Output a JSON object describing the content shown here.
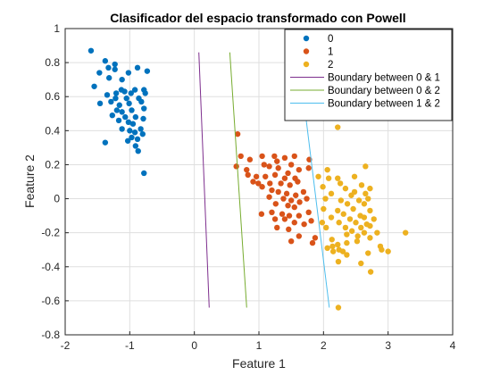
{
  "chart_data": {
    "type": "scatter",
    "title": "Clasificador del espacio transformado con Powell",
    "xlabel": "Feature 1",
    "ylabel": "Feature 2",
    "xlim": [
      -2,
      4
    ],
    "ylim": [
      -0.8,
      1
    ],
    "xticks": [
      "-2",
      "-1",
      "0",
      "1",
      "2",
      "3",
      "4"
    ],
    "yticks": [
      "-0.8",
      "-0.6",
      "-0.4",
      "-0.2",
      "0",
      "0.2",
      "0.4",
      "0.6",
      "0.8",
      "1"
    ],
    "grid": true,
    "legend_position": "top-right",
    "series": [
      {
        "name": "0",
        "kind": "points",
        "color": "#0072BD",
        "points": [
          [
            -1.6,
            0.87
          ],
          [
            -1.38,
            0.81
          ],
          [
            -1.33,
            0.77
          ],
          [
            -1.47,
            0.74
          ],
          [
            -1.23,
            0.79
          ],
          [
            -1.23,
            0.76
          ],
          [
            -1.02,
            0.74
          ],
          [
            -0.88,
            0.77
          ],
          [
            -0.73,
            0.75
          ],
          [
            -1.32,
            0.71
          ],
          [
            -1.12,
            0.7
          ],
          [
            -1.55,
            0.66
          ],
          [
            -1.13,
            0.64
          ],
          [
            -1.08,
            0.63
          ],
          [
            -1.21,
            0.62
          ],
          [
            -0.98,
            0.62
          ],
          [
            -0.92,
            0.64
          ],
          [
            -0.78,
            0.64
          ],
          [
            -1.35,
            0.61
          ],
          [
            -1.22,
            0.59
          ],
          [
            -1.05,
            0.59
          ],
          [
            -0.86,
            0.59
          ],
          [
            -0.76,
            0.62
          ],
          [
            -1.46,
            0.56
          ],
          [
            -1.29,
            0.57
          ],
          [
            -1.16,
            0.55
          ],
          [
            -1.01,
            0.56
          ],
          [
            -0.82,
            0.57
          ],
          [
            -1.2,
            0.52
          ],
          [
            -1.12,
            0.51
          ],
          [
            -0.97,
            0.52
          ],
          [
            -0.78,
            0.53
          ],
          [
            -1.27,
            0.49
          ],
          [
            -1.07,
            0.48
          ],
          [
            -0.91,
            0.48
          ],
          [
            -0.79,
            0.47
          ],
          [
            -1.17,
            0.46
          ],
          [
            -1.02,
            0.45
          ],
          [
            -0.95,
            0.44
          ],
          [
            -0.83,
            0.41
          ],
          [
            -1.12,
            0.41
          ],
          [
            -1.0,
            0.4
          ],
          [
            -0.92,
            0.39
          ],
          [
            -0.8,
            0.38
          ],
          [
            -0.97,
            0.36
          ],
          [
            -0.88,
            0.35
          ],
          [
            -1.03,
            0.34
          ],
          [
            -1.38,
            0.33
          ],
          [
            -0.91,
            0.31
          ],
          [
            -0.87,
            0.28
          ],
          [
            -0.78,
            0.15
          ]
        ]
      },
      {
        "name": "1",
        "kind": "points",
        "color": "#D95319",
        "points": [
          [
            0.67,
            0.38
          ],
          [
            0.72,
            0.25
          ],
          [
            0.86,
            0.23
          ],
          [
            0.65,
            0.19
          ],
          [
            0.81,
            0.17
          ],
          [
            1.05,
            0.25
          ],
          [
            1.24,
            0.25
          ],
          [
            1.28,
            0.22
          ],
          [
            1.4,
            0.24
          ],
          [
            1.55,
            0.25
          ],
          [
            1.78,
            0.23
          ],
          [
            1.08,
            0.2
          ],
          [
            1.16,
            0.19
          ],
          [
            1.3,
            0.18
          ],
          [
            1.5,
            0.2
          ],
          [
            1.62,
            0.17
          ],
          [
            1.77,
            0.18
          ],
          [
            0.83,
            0.14
          ],
          [
            0.96,
            0.13
          ],
          [
            1.1,
            0.13
          ],
          [
            1.25,
            0.14
          ],
          [
            1.4,
            0.12
          ],
          [
            1.45,
            0.15
          ],
          [
            1.56,
            0.12
          ],
          [
            0.91,
            0.1
          ],
          [
            0.99,
            0.09
          ],
          [
            1.17,
            0.09
          ],
          [
            1.34,
            0.09
          ],
          [
            1.48,
            0.08
          ],
          [
            1.6,
            0.1
          ],
          [
            1.05,
            0.07
          ],
          [
            1.2,
            0.05
          ],
          [
            1.3,
            0.04
          ],
          [
            1.43,
            0.03
          ],
          [
            1.57,
            0.02
          ],
          [
            1.69,
            0.04
          ],
          [
            1.16,
            0.01
          ],
          [
            1.38,
            0.0
          ],
          [
            1.5,
            -0.01
          ],
          [
            1.63,
            -0.02
          ],
          [
            1.74,
            0.0
          ],
          [
            1.26,
            -0.03
          ],
          [
            1.45,
            -0.04
          ],
          [
            1.55,
            -0.05
          ],
          [
            1.04,
            -0.09
          ],
          [
            1.2,
            -0.08
          ],
          [
            1.36,
            -0.09
          ],
          [
            1.47,
            -0.1
          ],
          [
            1.62,
            -0.1
          ],
          [
            1.77,
            -0.08
          ],
          [
            1.25,
            -0.12
          ],
          [
            1.4,
            -0.12
          ],
          [
            1.55,
            -0.14
          ],
          [
            1.7,
            -0.15
          ],
          [
            1.81,
            -0.13
          ],
          [
            1.28,
            -0.17
          ],
          [
            1.46,
            -0.18
          ],
          [
            1.62,
            -0.22
          ],
          [
            1.87,
            -0.23
          ],
          [
            1.5,
            -0.25
          ],
          [
            1.83,
            -0.26
          ]
        ]
      },
      {
        "name": "2",
        "kind": "points",
        "color": "#EDB120",
        "points": [
          [
            2.22,
            0.42
          ],
          [
            2.06,
            0.17
          ],
          [
            2.65,
            0.19
          ],
          [
            1.92,
            0.13
          ],
          [
            2.08,
            0.12
          ],
          [
            2.22,
            0.12
          ],
          [
            2.48,
            0.13
          ],
          [
            2.26,
            0.09
          ],
          [
            1.99,
            0.07
          ],
          [
            2.34,
            0.06
          ],
          [
            2.59,
            0.08
          ],
          [
            2.72,
            0.06
          ],
          [
            2.48,
            0.04
          ],
          [
            2.65,
            0.03
          ],
          [
            2.12,
            0.03
          ],
          [
            2.43,
            0.02
          ],
          [
            2.03,
            0.0
          ],
          [
            2.27,
            -0.01
          ],
          [
            2.55,
            -0.01
          ],
          [
            2.69,
            0.0
          ],
          [
            2.37,
            -0.03
          ],
          [
            2.63,
            -0.03
          ],
          [
            2.0,
            -0.06
          ],
          [
            2.22,
            -0.07
          ],
          [
            2.46,
            -0.06
          ],
          [
            2.72,
            -0.07
          ],
          [
            2.31,
            -0.09
          ],
          [
            2.57,
            -0.1
          ],
          [
            2.12,
            -0.11
          ],
          [
            2.41,
            -0.12
          ],
          [
            2.63,
            -0.11
          ],
          [
            2.78,
            -0.12
          ],
          [
            1.98,
            -0.14
          ],
          [
            2.24,
            -0.14
          ],
          [
            2.5,
            -0.14
          ],
          [
            2.67,
            -0.15
          ],
          [
            2.04,
            -0.17
          ],
          [
            2.34,
            -0.17
          ],
          [
            2.58,
            -0.17
          ],
          [
            2.72,
            -0.16
          ],
          [
            2.44,
            -0.19
          ],
          [
            2.63,
            -0.2
          ],
          [
            2.83,
            -0.2
          ],
          [
            3.27,
            -0.2
          ],
          [
            2.36,
            -0.21
          ],
          [
            2.53,
            -0.22
          ],
          [
            2.13,
            -0.24
          ],
          [
            2.72,
            -0.23
          ],
          [
            2.52,
            -0.25
          ],
          [
            2.36,
            -0.26
          ],
          [
            2.22,
            -0.27
          ],
          [
            2.14,
            -0.28
          ],
          [
            2.06,
            -0.29
          ],
          [
            2.88,
            -0.28
          ],
          [
            2.24,
            -0.3
          ],
          [
            2.9,
            -0.3
          ],
          [
            2.15,
            -0.31
          ],
          [
            2.3,
            -0.31
          ],
          [
            3.0,
            -0.31
          ],
          [
            2.69,
            -0.32
          ],
          [
            2.36,
            -0.33
          ],
          [
            2.23,
            -0.37
          ],
          [
            2.58,
            -0.38
          ],
          [
            2.73,
            -0.43
          ],
          [
            2.23,
            -0.64
          ]
        ]
      },
      {
        "name": "Boundary between 0 & 1",
        "kind": "line",
        "color": "#7E2F8E",
        "points": [
          [
            0.07,
            0.86
          ],
          [
            0.23,
            -0.64
          ]
        ]
      },
      {
        "name": "Boundary between 0 & 2",
        "kind": "line",
        "color": "#77AC30",
        "points": [
          [
            0.55,
            0.86
          ],
          [
            0.81,
            -0.64
          ]
        ]
      },
      {
        "name": "Boundary between 1 & 2",
        "kind": "line",
        "color": "#4DBEEE",
        "points": [
          [
            1.72,
            0.5
          ],
          [
            2.09,
            -0.64
          ]
        ]
      }
    ]
  }
}
